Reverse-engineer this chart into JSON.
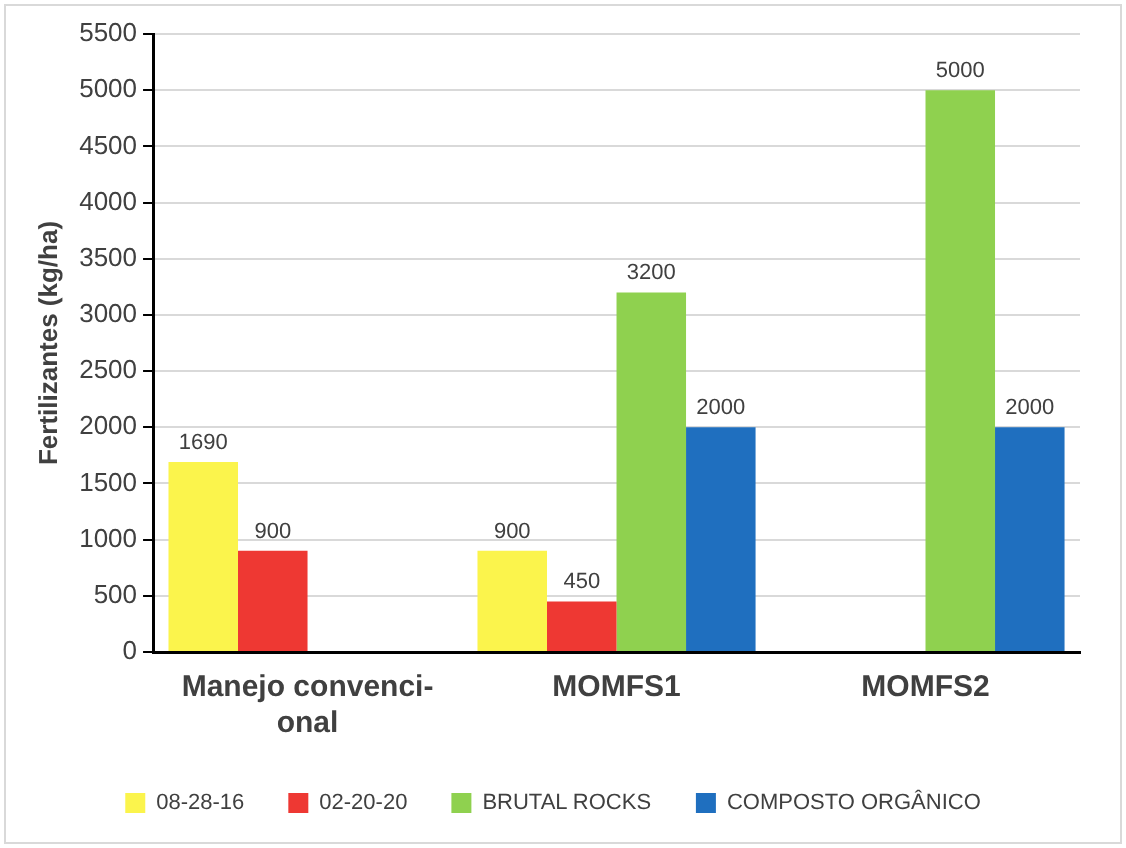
{
  "chart_data": {
    "type": "bar",
    "ylabel": "Fertilizantes (kg/ha)",
    "categories": [
      "Manejo convenci-\nonal",
      "MOMFS1",
      "MOMFS2"
    ],
    "series": [
      {
        "name": "08-28-16",
        "color": "#fbf44c",
        "values": [
          1690,
          900,
          null
        ]
      },
      {
        "name": "02-20-20",
        "color": "#ee3833",
        "values": [
          900,
          450,
          null
        ]
      },
      {
        "name": "BRUTAL ROCKS",
        "color": "#8fd14f",
        "values": [
          null,
          3200,
          5000
        ]
      },
      {
        "name": "COMPOSTO ORGÂNICO",
        "color": "#1f6fbf",
        "values": [
          null,
          2000,
          2000
        ]
      }
    ],
    "ylim": [
      0,
      5500
    ],
    "yticks": [
      0,
      500,
      1000,
      1500,
      2000,
      2500,
      3000,
      3500,
      4000,
      4500,
      5000,
      5500
    ],
    "grid": "y",
    "legend": "bottom",
    "data_labels": true
  }
}
